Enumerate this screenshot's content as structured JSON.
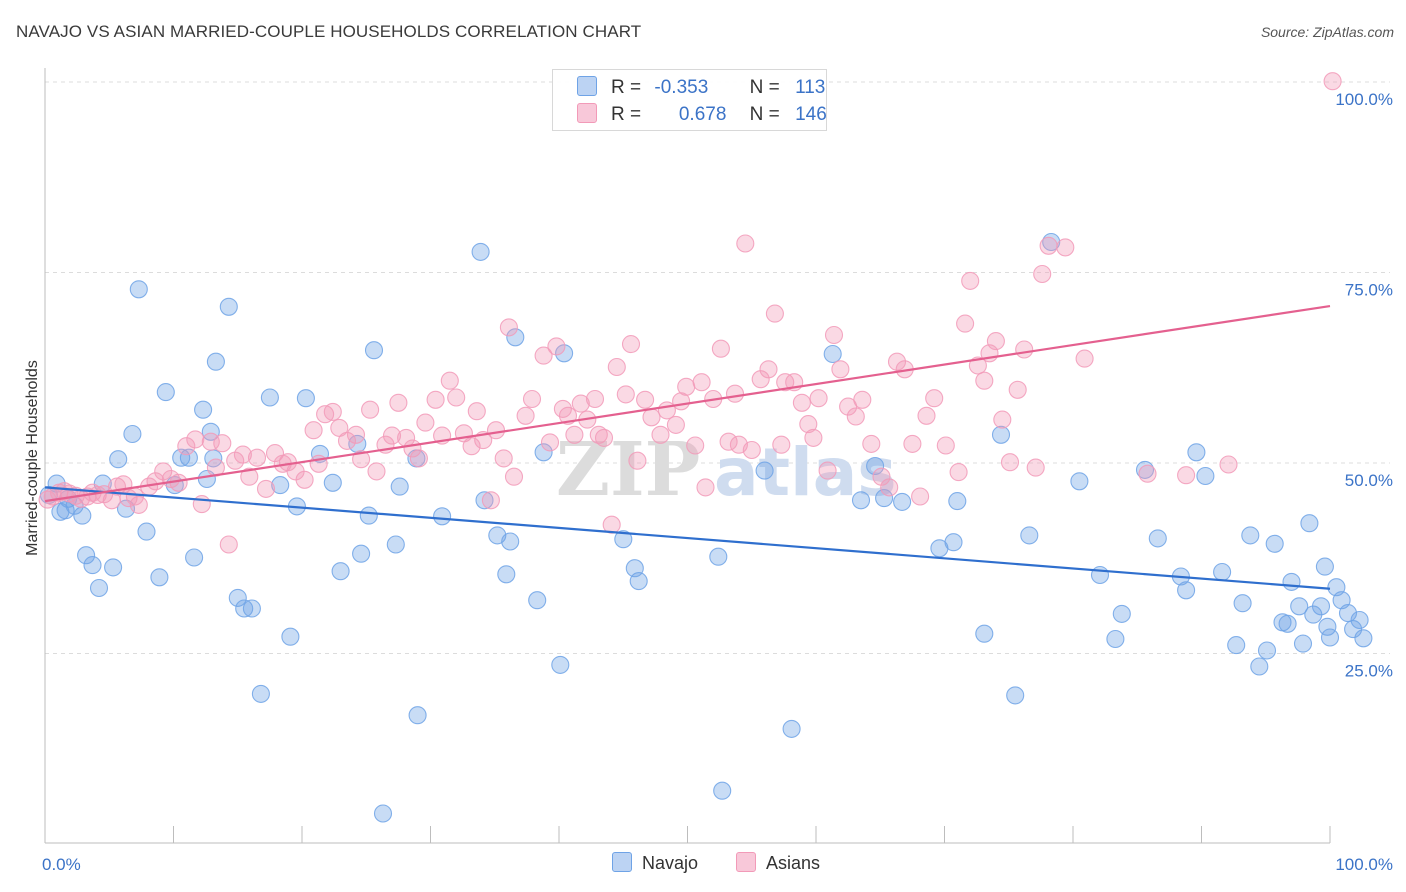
{
  "header": {
    "title": "NAVAJO VS ASIAN MARRIED-COUPLE HOUSEHOLDS CORRELATION CHART",
    "source": "Source: ZipAtlas.com"
  },
  "legend": {
    "r_label": "R =",
    "n_label": "N =",
    "navajo": {
      "r": "-0.353",
      "n": "113"
    },
    "asians": {
      "r": "0.678",
      "n": "146"
    }
  },
  "bottom_legend": {
    "navajo": "Navajo",
    "asians": "Asians"
  },
  "watermark": {
    "zip": "ZIP",
    "atlas": "atlas"
  },
  "chart_data": {
    "type": "scatter",
    "title": "NAVAJO VS ASIAN MARRIED-COUPLE HOUSEHOLDS CORRELATION CHART",
    "ylabel": "Married-couple Households",
    "xlabel": "",
    "xlim": [
      0,
      100
    ],
    "ylim": [
      0,
      105
    ],
    "x_tick_labels": [
      "0.0%",
      "100.0%"
    ],
    "y_ticks": [
      25,
      50,
      75,
      100
    ],
    "y_tick_labels": [
      "25.0%",
      "50.0%",
      "75.0%",
      "100.0%"
    ],
    "grid": "horizontal dashed",
    "legend_placement": "top-center",
    "colors": {
      "navajo": "#6fa3e6",
      "navajo_line": "#2f6fce",
      "asians": "#f29ab8",
      "asians_line": "#e4608f",
      "tick_text": "#3b73c7"
    },
    "series": [
      {
        "name": "Navajo",
        "trend": {
          "x": [
            0,
            100
          ],
          "y": [
            46.8,
            33.5
          ]
        },
        "points": [
          [
            0.3,
            45.8
          ],
          [
            0.9,
            47.3
          ],
          [
            1.2,
            43.6
          ],
          [
            1.6,
            43.8
          ],
          [
            1.8,
            45.3
          ],
          [
            2.3,
            44.4
          ],
          [
            2.9,
            43.1
          ],
          [
            3.2,
            37.9
          ],
          [
            3.7,
            36.6
          ],
          [
            4.2,
            33.6
          ],
          [
            4.5,
            47.3
          ],
          [
            5.3,
            36.3
          ],
          [
            5.7,
            50.5
          ],
          [
            6.3,
            44.0
          ],
          [
            6.8,
            53.8
          ],
          [
            7.3,
            72.8
          ],
          [
            7.9,
            41.0
          ],
          [
            8.9,
            35.0
          ],
          [
            9.4,
            59.3
          ],
          [
            10.1,
            47.1
          ],
          [
            10.6,
            50.7
          ],
          [
            11.2,
            50.7
          ],
          [
            11.6,
            37.6
          ],
          [
            12.3,
            57.0
          ],
          [
            12.6,
            47.9
          ],
          [
            12.9,
            54.1
          ],
          [
            13.1,
            50.6
          ],
          [
            13.3,
            63.3
          ],
          [
            14.3,
            70.5
          ],
          [
            15.0,
            32.3
          ],
          [
            15.5,
            30.9
          ],
          [
            16.1,
            30.9
          ],
          [
            16.8,
            19.7
          ],
          [
            17.5,
            58.6
          ],
          [
            18.3,
            47.1
          ],
          [
            19.1,
            27.2
          ],
          [
            19.6,
            44.3
          ],
          [
            20.3,
            58.5
          ],
          [
            21.4,
            51.2
          ],
          [
            22.4,
            47.4
          ],
          [
            23.0,
            35.8
          ],
          [
            24.3,
            52.5
          ],
          [
            24.6,
            38.1
          ],
          [
            25.2,
            43.1
          ],
          [
            25.6,
            64.8
          ],
          [
            26.3,
            4.0
          ],
          [
            27.3,
            39.3
          ],
          [
            27.6,
            46.9
          ],
          [
            28.9,
            50.6
          ],
          [
            29.0,
            16.9
          ],
          [
            30.9,
            43.0
          ],
          [
            33.9,
            77.7
          ],
          [
            34.2,
            45.1
          ],
          [
            35.2,
            40.5
          ],
          [
            35.9,
            35.4
          ],
          [
            36.2,
            39.7
          ],
          [
            36.6,
            66.5
          ],
          [
            38.3,
            32.0
          ],
          [
            38.8,
            51.4
          ],
          [
            40.1,
            23.5
          ],
          [
            40.4,
            64.4
          ],
          [
            45.0,
            40.0
          ],
          [
            45.9,
            36.2
          ],
          [
            46.2,
            34.5
          ],
          [
            52.4,
            37.7
          ],
          [
            52.7,
            7.0
          ],
          [
            56.0,
            49.0
          ],
          [
            58.1,
            15.1
          ],
          [
            61.3,
            64.3
          ],
          [
            63.5,
            45.1
          ],
          [
            64.6,
            49.6
          ],
          [
            65.3,
            45.4
          ],
          [
            66.7,
            44.9
          ],
          [
            69.6,
            38.8
          ],
          [
            70.7,
            39.6
          ],
          [
            71.0,
            45.0
          ],
          [
            73.1,
            27.6
          ],
          [
            74.4,
            53.7
          ],
          [
            75.5,
            19.5
          ],
          [
            76.6,
            40.5
          ],
          [
            78.3,
            79.0
          ],
          [
            80.5,
            47.6
          ],
          [
            82.1,
            35.3
          ],
          [
            83.3,
            26.9
          ],
          [
            83.8,
            30.2
          ],
          [
            85.6,
            49.1
          ],
          [
            86.6,
            40.1
          ],
          [
            88.4,
            35.1
          ],
          [
            88.8,
            33.3
          ],
          [
            89.6,
            51.4
          ],
          [
            90.3,
            48.3
          ],
          [
            91.6,
            35.7
          ],
          [
            92.7,
            26.1
          ],
          [
            93.2,
            31.6
          ],
          [
            93.8,
            40.5
          ],
          [
            94.5,
            23.3
          ],
          [
            95.1,
            25.4
          ],
          [
            95.7,
            39.4
          ],
          [
            96.3,
            29.1
          ],
          [
            96.7,
            28.9
          ],
          [
            97.0,
            34.4
          ],
          [
            97.6,
            31.2
          ],
          [
            97.9,
            26.3
          ],
          [
            98.4,
            42.1
          ],
          [
            98.7,
            30.1
          ],
          [
            99.3,
            31.2
          ],
          [
            99.6,
            36.4
          ],
          [
            99.8,
            28.5
          ],
          [
            100.0,
            27.1
          ],
          [
            100.5,
            33.7
          ],
          [
            100.9,
            32.0
          ],
          [
            101.4,
            30.3
          ],
          [
            101.8,
            28.2
          ],
          [
            102.3,
            29.4
          ],
          [
            102.6,
            27.0
          ]
        ]
      },
      {
        "name": "Asians",
        "trend": {
          "x": [
            0,
            100
          ],
          "y": [
            45.0,
            70.6
          ]
        },
        "points": [
          [
            0.2,
            45.2
          ],
          [
            0.6,
            45.6
          ],
          [
            1.1,
            46.1
          ],
          [
            1.5,
            46.3
          ],
          [
            1.9,
            46.0
          ],
          [
            2.4,
            45.7
          ],
          [
            2.8,
            45.3
          ],
          [
            3.3,
            45.6
          ],
          [
            3.7,
            46.1
          ],
          [
            4.1,
            45.8
          ],
          [
            4.6,
            45.9
          ],
          [
            5.2,
            45.1
          ],
          [
            5.6,
            46.9
          ],
          [
            6.1,
            47.2
          ],
          [
            6.5,
            45.4
          ],
          [
            7.0,
            45.6
          ],
          [
            7.3,
            44.5
          ],
          [
            8.1,
            46.9
          ],
          [
            8.6,
            47.6
          ],
          [
            9.2,
            48.9
          ],
          [
            9.8,
            47.9
          ],
          [
            10.4,
            47.4
          ],
          [
            11.0,
            52.2
          ],
          [
            11.7,
            53.1
          ],
          [
            12.2,
            44.6
          ],
          [
            12.9,
            52.8
          ],
          [
            13.3,
            49.4
          ],
          [
            13.8,
            52.6
          ],
          [
            14.3,
            39.3
          ],
          [
            14.8,
            50.3
          ],
          [
            15.4,
            51.1
          ],
          [
            15.9,
            48.2
          ],
          [
            16.5,
            50.7
          ],
          [
            17.2,
            46.6
          ],
          [
            17.9,
            51.3
          ],
          [
            18.5,
            49.9
          ],
          [
            18.9,
            50.1
          ],
          [
            19.5,
            48.9
          ],
          [
            20.2,
            47.8
          ],
          [
            20.9,
            54.3
          ],
          [
            21.3,
            49.9
          ],
          [
            21.8,
            56.4
          ],
          [
            22.4,
            56.7
          ],
          [
            22.9,
            54.6
          ],
          [
            23.5,
            52.9
          ],
          [
            24.2,
            53.7
          ],
          [
            24.6,
            50.5
          ],
          [
            25.3,
            57.0
          ],
          [
            25.8,
            48.9
          ],
          [
            26.5,
            52.4
          ],
          [
            27.0,
            53.6
          ],
          [
            27.5,
            57.9
          ],
          [
            28.1,
            53.3
          ],
          [
            28.6,
            51.9
          ],
          [
            29.1,
            50.6
          ],
          [
            29.6,
            55.3
          ],
          [
            30.4,
            58.3
          ],
          [
            30.9,
            53.6
          ],
          [
            31.5,
            60.8
          ],
          [
            32.0,
            58.6
          ],
          [
            32.6,
            53.9
          ],
          [
            33.2,
            52.2
          ],
          [
            33.6,
            56.8
          ],
          [
            34.1,
            53.0
          ],
          [
            34.7,
            45.1
          ],
          [
            35.1,
            54.3
          ],
          [
            35.7,
            50.6
          ],
          [
            36.1,
            67.8
          ],
          [
            36.5,
            48.2
          ],
          [
            37.4,
            56.2
          ],
          [
            37.9,
            58.4
          ],
          [
            38.8,
            64.1
          ],
          [
            39.3,
            52.7
          ],
          [
            39.8,
            65.3
          ],
          [
            40.3,
            57.1
          ],
          [
            40.7,
            56.2
          ],
          [
            41.2,
            53.7
          ],
          [
            41.7,
            57.8
          ],
          [
            42.2,
            55.7
          ],
          [
            42.8,
            58.4
          ],
          [
            43.1,
            53.7
          ],
          [
            43.5,
            53.3
          ],
          [
            44.1,
            41.9
          ],
          [
            44.5,
            62.6
          ],
          [
            45.2,
            59.0
          ],
          [
            45.6,
            65.6
          ],
          [
            46.1,
            50.3
          ],
          [
            46.7,
            58.3
          ],
          [
            47.2,
            56.0
          ],
          [
            47.9,
            53.7
          ],
          [
            48.4,
            56.9
          ],
          [
            49.1,
            55.0
          ],
          [
            49.5,
            58.1
          ],
          [
            49.9,
            60.0
          ],
          [
            50.6,
            52.3
          ],
          [
            51.1,
            60.6
          ],
          [
            51.4,
            46.8
          ],
          [
            52.0,
            58.4
          ],
          [
            52.6,
            65.0
          ],
          [
            53.2,
            52.8
          ],
          [
            53.7,
            59.1
          ],
          [
            54.0,
            52.4
          ],
          [
            54.5,
            78.8
          ],
          [
            55.0,
            51.7
          ],
          [
            55.7,
            61.0
          ],
          [
            56.3,
            62.3
          ],
          [
            56.8,
            69.6
          ],
          [
            57.3,
            52.4
          ],
          [
            57.6,
            60.6
          ],
          [
            58.3,
            60.6
          ],
          [
            58.9,
            57.9
          ],
          [
            59.4,
            55.1
          ],
          [
            59.8,
            53.3
          ],
          [
            60.2,
            58.5
          ],
          [
            60.9,
            49.0
          ],
          [
            61.4,
            66.8
          ],
          [
            61.9,
            62.3
          ],
          [
            62.5,
            57.4
          ],
          [
            63.1,
            56.1
          ],
          [
            63.6,
            58.3
          ],
          [
            64.3,
            52.5
          ],
          [
            65.1,
            48.2
          ],
          [
            65.7,
            46.8
          ],
          [
            66.3,
            63.3
          ],
          [
            66.9,
            62.3
          ],
          [
            67.5,
            52.5
          ],
          [
            68.1,
            45.6
          ],
          [
            68.6,
            56.2
          ],
          [
            69.2,
            58.5
          ],
          [
            70.1,
            52.3
          ],
          [
            71.1,
            48.8
          ],
          [
            71.6,
            68.3
          ],
          [
            72.0,
            73.9
          ],
          [
            72.6,
            62.8
          ],
          [
            73.1,
            60.8
          ],
          [
            73.5,
            64.4
          ],
          [
            74.0,
            66.0
          ],
          [
            74.5,
            55.7
          ],
          [
            75.1,
            50.1
          ],
          [
            75.7,
            59.6
          ],
          [
            76.2,
            64.9
          ],
          [
            77.1,
            49.4
          ],
          [
            77.6,
            74.8
          ],
          [
            78.1,
            78.5
          ],
          [
            79.4,
            78.3
          ],
          [
            80.9,
            63.7
          ],
          [
            85.8,
            48.6
          ],
          [
            88.8,
            48.4
          ],
          [
            92.1,
            49.8
          ],
          [
            100.2,
            100.1
          ]
        ]
      }
    ]
  }
}
